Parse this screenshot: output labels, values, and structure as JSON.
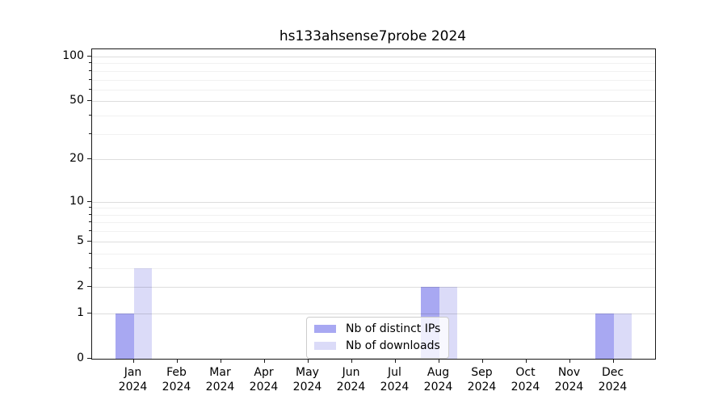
{
  "chart_data": {
    "type": "bar",
    "title": "hs133ahsense7probe 2024",
    "categories": [
      "Jan 2024",
      "Feb 2024",
      "Mar 2024",
      "Apr 2024",
      "May 2024",
      "Jun 2024",
      "Jul 2024",
      "Aug 2024",
      "Sep 2024",
      "Oct 2024",
      "Nov 2024",
      "Dec 2024"
    ],
    "series": [
      {
        "name": "Nb of distinct IPs",
        "key": "distinct-ips",
        "color": "#a8a8f2",
        "values": [
          1,
          0,
          0,
          0,
          0,
          0,
          0,
          2,
          0,
          0,
          0,
          1
        ]
      },
      {
        "name": "Nb of downloads",
        "key": "downloads",
        "color": "#dbdbf8",
        "values": [
          3,
          0,
          0,
          0,
          0,
          0,
          0,
          2,
          0,
          0,
          0,
          1
        ]
      }
    ],
    "xlabel": "",
    "ylabel": "",
    "yscale": "log1p",
    "ylim": [
      0,
      113
    ],
    "y_major_ticks": [
      0,
      1,
      2,
      5,
      10,
      20,
      50,
      100
    ],
    "y_minor_ticks": [
      3,
      4,
      6,
      7,
      8,
      9,
      30,
      40,
      60,
      70,
      80,
      90
    ],
    "grid": true,
    "legend_position": "lower center"
  },
  "colors": {
    "bar_distinct_ips": "#a8a8f2",
    "bar_downloads": "#dbdbf8",
    "spine": "#1a1a1a",
    "legend_border": "#cccccc"
  }
}
